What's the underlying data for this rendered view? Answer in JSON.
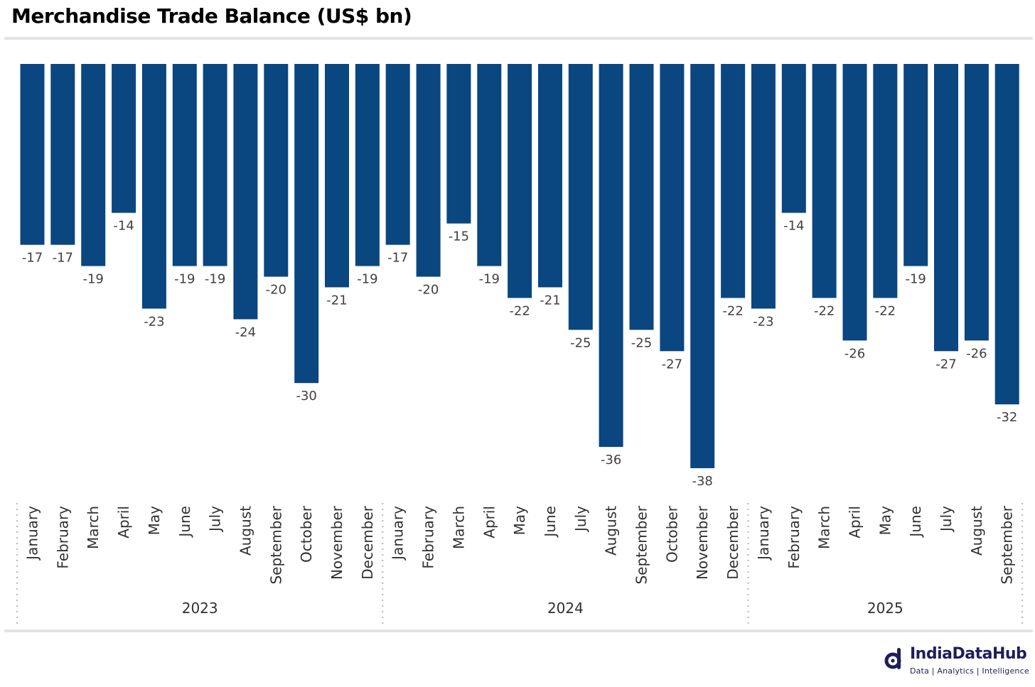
{
  "chart_data": {
    "type": "bar",
    "title": "Merchandise Trade Balance (US$ bn)",
    "xlabel": "",
    "ylabel": "",
    "ylim": [
      -38,
      0
    ],
    "grid": false,
    "categories": [
      "January",
      "February",
      "March",
      "April",
      "May",
      "June",
      "July",
      "August",
      "September",
      "October",
      "November",
      "December",
      "January",
      "February",
      "March",
      "April",
      "May",
      "June",
      "July",
      "August",
      "September",
      "October",
      "November",
      "December",
      "January",
      "February",
      "March",
      "April",
      "May",
      "June",
      "July",
      "August",
      "September"
    ],
    "groups": [
      {
        "label": "2023",
        "count": 12
      },
      {
        "label": "2024",
        "count": 12
      },
      {
        "label": "2025",
        "count": 9
      }
    ],
    "values": [
      -17,
      -17,
      -19,
      -14,
      -23,
      -19,
      -19,
      -24,
      -20,
      -30,
      -21,
      -19,
      -17,
      -20,
      -15,
      -19,
      -22,
      -21,
      -25,
      -36,
      -25,
      -27,
      -38,
      -22,
      -23,
      -14,
      -22,
      -26,
      -22,
      -19,
      -27,
      -26,
      -32
    ],
    "data_labels": [
      "-17",
      "-17",
      "-19",
      "-14",
      "-23",
      "-19",
      "-19",
      "-24",
      "-20",
      "-30",
      "-21",
      "-19",
      "-17",
      "-20",
      "-15",
      "-19",
      "-22",
      "-21",
      "-25",
      "-36",
      "-25",
      "-27",
      "-38",
      "-22",
      "-23",
      "-14",
      "-22",
      "-26",
      "-22",
      "-19",
      "-27",
      "-26",
      "-32"
    ],
    "bar_color": "#0a4680"
  },
  "brand": {
    "name": "IndiaDataHub",
    "tagline": "Data | Analytics | Intelligence",
    "color": "#1f1d5a",
    "icon": "india-data-hub-logo-icon"
  }
}
